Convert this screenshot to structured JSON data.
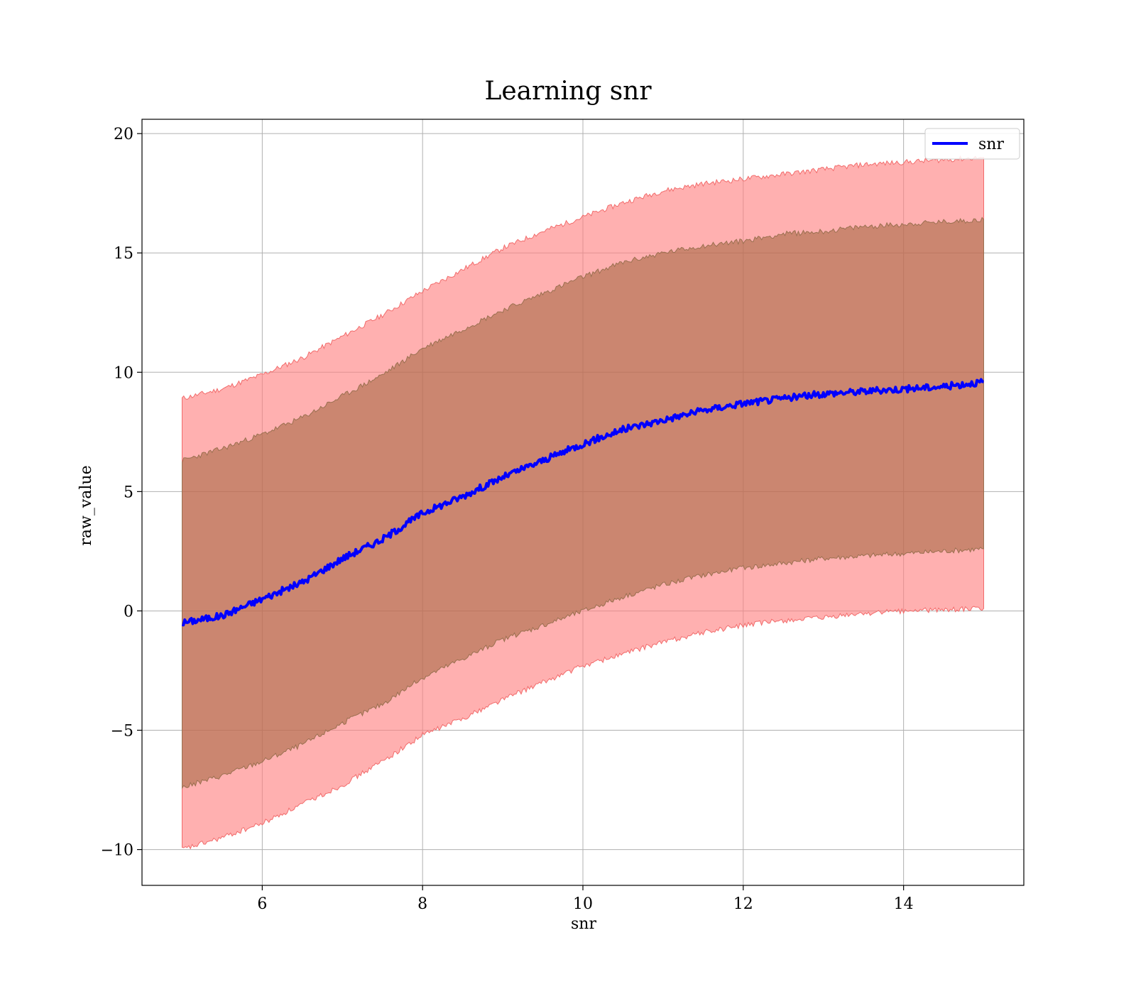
{
  "chart_data": {
    "type": "line",
    "title": "Learning snr",
    "xlabel": "snr",
    "ylabel": "raw_value",
    "xlim": [
      4.5,
      15.5
    ],
    "ylim": [
      -11.5,
      20.6
    ],
    "xticks": [
      6,
      8,
      10,
      12,
      14
    ],
    "xtick_labels": [
      "6",
      "8",
      "10",
      "12",
      "14"
    ],
    "yticks": [
      -10,
      -5,
      0,
      5,
      10,
      15,
      20
    ],
    "ytick_labels": [
      "−10",
      "−5",
      "0",
      "5",
      "10",
      "15",
      "20"
    ],
    "grid": true,
    "legend": {
      "position": "top-right",
      "entries": [
        "snr"
      ]
    },
    "colors": {
      "line": "#0000ff",
      "outer_band": "#ff7f7f",
      "inner_band": "#a0643c",
      "grid": "#b0b0b0"
    },
    "x": [
      5,
      5.5,
      6,
      6.5,
      7,
      7.5,
      8,
      8.5,
      9,
      9.5,
      10,
      10.5,
      11,
      11.5,
      12,
      12.5,
      13,
      13.5,
      14,
      14.5,
      15
    ],
    "series": [
      {
        "name": "snr",
        "values": [
          -0.5,
          -0.2,
          0.5,
          1.2,
          2.2,
          3.0,
          4.1,
          4.8,
          5.6,
          6.3,
          7.0,
          7.6,
          8.0,
          8.4,
          8.7,
          8.9,
          9.1,
          9.2,
          9.3,
          9.4,
          9.6
        ]
      }
    ],
    "bands": [
      {
        "label": "outer",
        "upper": [
          8.9,
          9.3,
          9.9,
          10.6,
          11.5,
          12.4,
          13.4,
          14.3,
          15.2,
          15.9,
          16.5,
          17.1,
          17.6,
          17.9,
          18.1,
          18.3,
          18.5,
          18.7,
          18.8,
          18.9,
          19.0
        ],
        "lower": [
          -10.0,
          -9.5,
          -8.9,
          -8.1,
          -7.3,
          -6.3,
          -5.2,
          -4.5,
          -3.7,
          -3.0,
          -2.3,
          -1.8,
          -1.3,
          -0.9,
          -0.6,
          -0.4,
          -0.3,
          -0.1,
          0.0,
          0.05,
          0.1
        ]
      },
      {
        "label": "inner",
        "upper": [
          6.3,
          6.8,
          7.4,
          8.1,
          9.0,
          9.9,
          11.0,
          11.8,
          12.6,
          13.3,
          14.0,
          14.6,
          15.0,
          15.3,
          15.5,
          15.8,
          15.9,
          16.1,
          16.2,
          16.3,
          16.4
        ],
        "lower": [
          -7.4,
          -6.9,
          -6.3,
          -5.6,
          -4.7,
          -3.9,
          -2.8,
          -2.0,
          -1.2,
          -0.6,
          0.0,
          0.6,
          1.1,
          1.5,
          1.8,
          2.0,
          2.2,
          2.3,
          2.4,
          2.5,
          2.6
        ]
      }
    ]
  }
}
